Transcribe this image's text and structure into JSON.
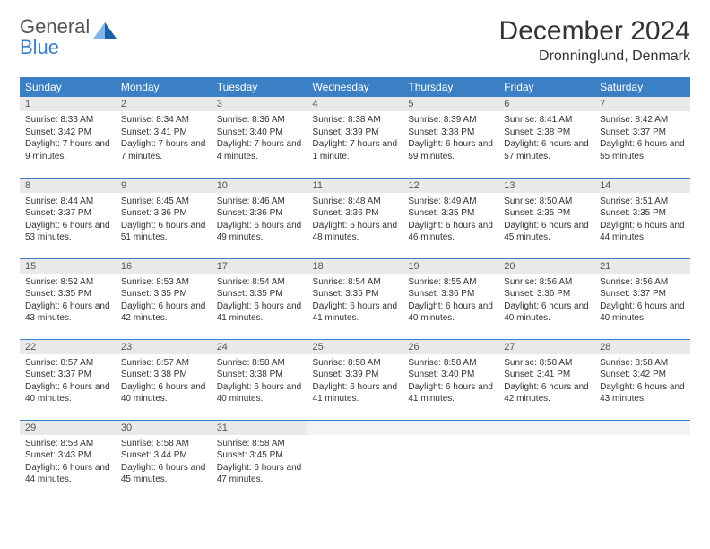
{
  "brand": {
    "word1": "General",
    "word2": "Blue"
  },
  "title": "December 2024",
  "location": "Dronninglund, Denmark",
  "colors": {
    "header_bg": "#3b7fc4",
    "header_text": "#ffffff",
    "daynum_bg": "#e9e9e9",
    "daynum_text": "#555555",
    "rule": "#3b7fc4",
    "body_text": "#333333",
    "logo_accent": "#1b5fa6"
  },
  "typography": {
    "title_fontsize": 30,
    "subtitle_fontsize": 16,
    "header_fontsize": 12,
    "daynum_fontsize": 11,
    "detail_fontsize": 10
  },
  "day_headers": [
    "Sunday",
    "Monday",
    "Tuesday",
    "Wednesday",
    "Thursday",
    "Friday",
    "Saturday"
  ],
  "weeks": [
    [
      {
        "n": "1",
        "sr": "8:33 AM",
        "ss": "3:42 PM",
        "dl": "7 hours and 9 minutes"
      },
      {
        "n": "2",
        "sr": "8:34 AM",
        "ss": "3:41 PM",
        "dl": "7 hours and 7 minutes"
      },
      {
        "n": "3",
        "sr": "8:36 AM",
        "ss": "3:40 PM",
        "dl": "7 hours and 4 minutes"
      },
      {
        "n": "4",
        "sr": "8:38 AM",
        "ss": "3:39 PM",
        "dl": "7 hours and 1 minute"
      },
      {
        "n": "5",
        "sr": "8:39 AM",
        "ss": "3:38 PM",
        "dl": "6 hours and 59 minutes"
      },
      {
        "n": "6",
        "sr": "8:41 AM",
        "ss": "3:38 PM",
        "dl": "6 hours and 57 minutes"
      },
      {
        "n": "7",
        "sr": "8:42 AM",
        "ss": "3:37 PM",
        "dl": "6 hours and 55 minutes"
      }
    ],
    [
      {
        "n": "8",
        "sr": "8:44 AM",
        "ss": "3:37 PM",
        "dl": "6 hours and 53 minutes"
      },
      {
        "n": "9",
        "sr": "8:45 AM",
        "ss": "3:36 PM",
        "dl": "6 hours and 51 minutes"
      },
      {
        "n": "10",
        "sr": "8:46 AM",
        "ss": "3:36 PM",
        "dl": "6 hours and 49 minutes"
      },
      {
        "n": "11",
        "sr": "8:48 AM",
        "ss": "3:36 PM",
        "dl": "6 hours and 48 minutes"
      },
      {
        "n": "12",
        "sr": "8:49 AM",
        "ss": "3:35 PM",
        "dl": "6 hours and 46 minutes"
      },
      {
        "n": "13",
        "sr": "8:50 AM",
        "ss": "3:35 PM",
        "dl": "6 hours and 45 minutes"
      },
      {
        "n": "14",
        "sr": "8:51 AM",
        "ss": "3:35 PM",
        "dl": "6 hours and 44 minutes"
      }
    ],
    [
      {
        "n": "15",
        "sr": "8:52 AM",
        "ss": "3:35 PM",
        "dl": "6 hours and 43 minutes"
      },
      {
        "n": "16",
        "sr": "8:53 AM",
        "ss": "3:35 PM",
        "dl": "6 hours and 42 minutes"
      },
      {
        "n": "17",
        "sr": "8:54 AM",
        "ss": "3:35 PM",
        "dl": "6 hours and 41 minutes"
      },
      {
        "n": "18",
        "sr": "8:54 AM",
        "ss": "3:35 PM",
        "dl": "6 hours and 41 minutes"
      },
      {
        "n": "19",
        "sr": "8:55 AM",
        "ss": "3:36 PM",
        "dl": "6 hours and 40 minutes"
      },
      {
        "n": "20",
        "sr": "8:56 AM",
        "ss": "3:36 PM",
        "dl": "6 hours and 40 minutes"
      },
      {
        "n": "21",
        "sr": "8:56 AM",
        "ss": "3:37 PM",
        "dl": "6 hours and 40 minutes"
      }
    ],
    [
      {
        "n": "22",
        "sr": "8:57 AM",
        "ss": "3:37 PM",
        "dl": "6 hours and 40 minutes"
      },
      {
        "n": "23",
        "sr": "8:57 AM",
        "ss": "3:38 PM",
        "dl": "6 hours and 40 minutes"
      },
      {
        "n": "24",
        "sr": "8:58 AM",
        "ss": "3:38 PM",
        "dl": "6 hours and 40 minutes"
      },
      {
        "n": "25",
        "sr": "8:58 AM",
        "ss": "3:39 PM",
        "dl": "6 hours and 41 minutes"
      },
      {
        "n": "26",
        "sr": "8:58 AM",
        "ss": "3:40 PM",
        "dl": "6 hours and 41 minutes"
      },
      {
        "n": "27",
        "sr": "8:58 AM",
        "ss": "3:41 PM",
        "dl": "6 hours and 42 minutes"
      },
      {
        "n": "28",
        "sr": "8:58 AM",
        "ss": "3:42 PM",
        "dl": "6 hours and 43 minutes"
      }
    ],
    [
      {
        "n": "29",
        "sr": "8:58 AM",
        "ss": "3:43 PM",
        "dl": "6 hours and 44 minutes"
      },
      {
        "n": "30",
        "sr": "8:58 AM",
        "ss": "3:44 PM",
        "dl": "6 hours and 45 minutes"
      },
      {
        "n": "31",
        "sr": "8:58 AM",
        "ss": "3:45 PM",
        "dl": "6 hours and 47 minutes"
      },
      null,
      null,
      null,
      null
    ]
  ],
  "labels": {
    "sunrise": "Sunrise:",
    "sunset": "Sunset:",
    "daylight": "Daylight:"
  }
}
